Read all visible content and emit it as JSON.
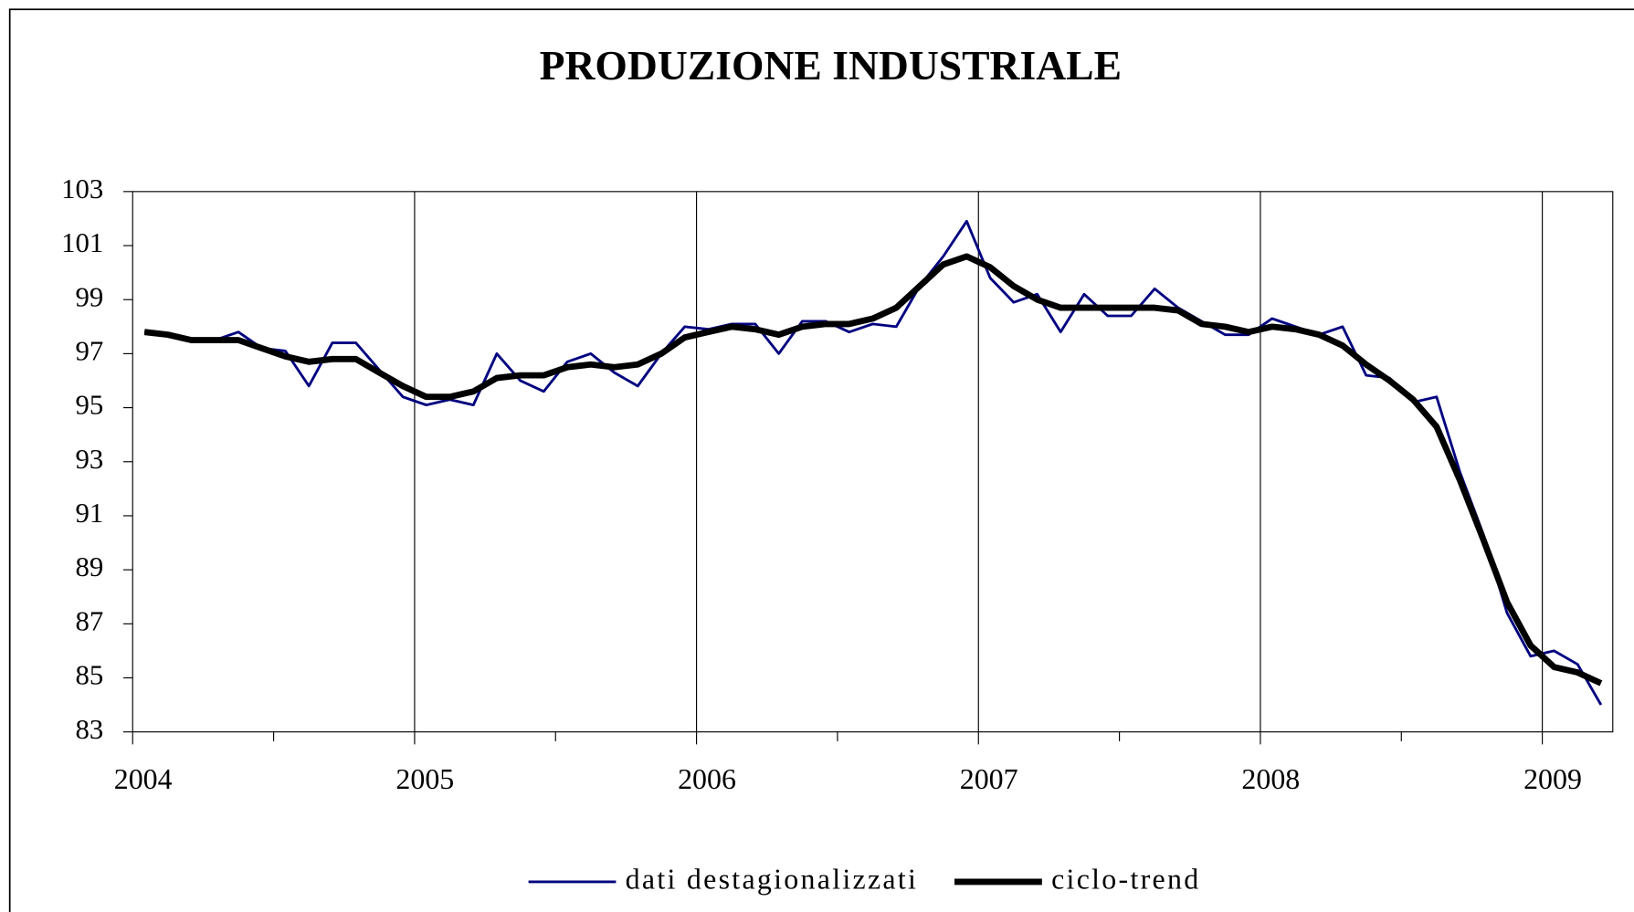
{
  "chart_data": {
    "type": "line",
    "title": "PRODUZIONE INDUSTRIALE",
    "categories": [
      "2004",
      null,
      null,
      null,
      null,
      null,
      null,
      null,
      null,
      null,
      null,
      null,
      "2005",
      null,
      null,
      null,
      null,
      null,
      null,
      null,
      null,
      null,
      null,
      null,
      "2006",
      null,
      null,
      null,
      null,
      null,
      null,
      null,
      null,
      null,
      null,
      null,
      "2007",
      null,
      null,
      null,
      null,
      null,
      null,
      null,
      null,
      null,
      null,
      null,
      "2008",
      null,
      null,
      null,
      null,
      null,
      null,
      null,
      null,
      null,
      null,
      null,
      "2009",
      null,
      null
    ],
    "series": [
      {
        "name": "dati destagionalizzati",
        "color": "#000080",
        "width": 2.5,
        "values": [
          97.8,
          97.7,
          97.5,
          97.5,
          97.8,
          97.2,
          97.1,
          95.8,
          97.4,
          97.4,
          96.4,
          95.4,
          95.1,
          95.3,
          95.1,
          97.0,
          96.0,
          95.6,
          96.7,
          97.0,
          96.3,
          95.8,
          97.0,
          98.0,
          97.9,
          98.1,
          98.1,
          97.0,
          98.2,
          98.2,
          97.8,
          98.1,
          98.0,
          99.5,
          100.6,
          101.9,
          99.8,
          98.9,
          99.2,
          97.8,
          99.2,
          98.4,
          98.4,
          99.4,
          98.7,
          98.2,
          97.7,
          97.7,
          98.3,
          98.0,
          97.7,
          98.0,
          96.2,
          96.1,
          95.2,
          95.4,
          92.6,
          90.3,
          87.4,
          85.8,
          86.0,
          85.5,
          84.0
        ]
      },
      {
        "name": "ciclo-trend",
        "color": "#000000",
        "width": 6,
        "values": [
          97.8,
          97.7,
          97.5,
          97.5,
          97.5,
          97.2,
          96.9,
          96.7,
          96.8,
          96.8,
          96.3,
          95.8,
          95.4,
          95.4,
          95.6,
          96.1,
          96.2,
          96.2,
          96.5,
          96.6,
          96.5,
          96.6,
          97.0,
          97.6,
          97.8,
          98.0,
          97.9,
          97.7,
          98.0,
          98.1,
          98.1,
          98.3,
          98.7,
          99.5,
          100.3,
          100.6,
          100.2,
          99.5,
          99.0,
          98.7,
          98.7,
          98.7,
          98.7,
          98.7,
          98.6,
          98.1,
          98.0,
          97.8,
          98.0,
          97.9,
          97.7,
          97.3,
          96.6,
          96.0,
          95.3,
          94.3,
          92.3,
          90.1,
          87.8,
          86.2,
          85.4,
          85.2,
          84.8
        ]
      }
    ],
    "ylim": [
      83,
      103
    ],
    "yticks": [
      83,
      85,
      87,
      89,
      91,
      93,
      95,
      97,
      99,
      101,
      103
    ],
    "xgrid": true,
    "legend": "bottom"
  }
}
